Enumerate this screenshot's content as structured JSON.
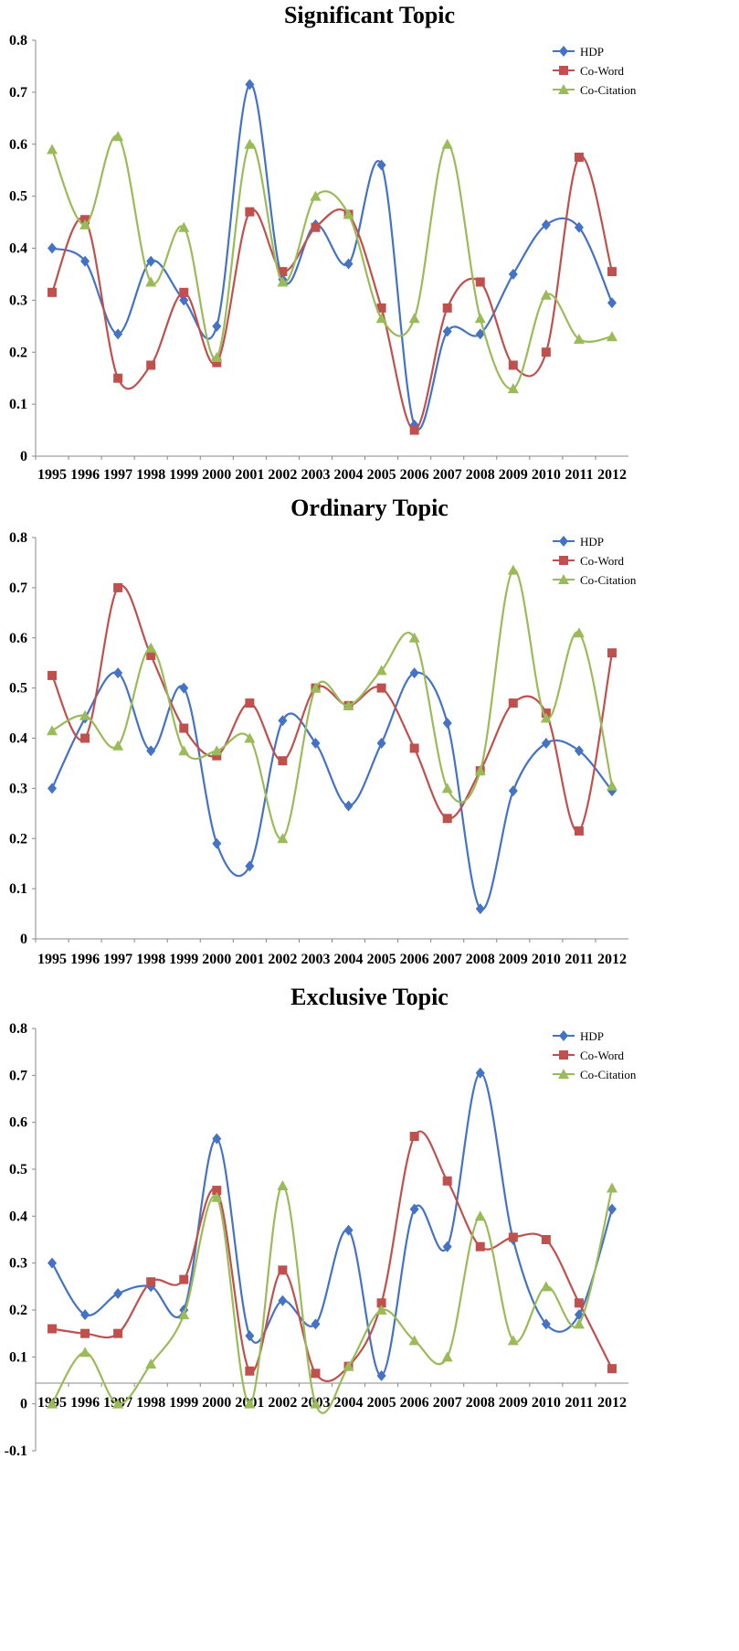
{
  "chart_data": [
    {
      "type": "line",
      "title": "Significant Topic",
      "x": [
        "1995",
        "1996",
        "1997",
        "1998",
        "1999",
        "2000",
        "2001",
        "2002",
        "2003",
        "2004",
        "2005",
        "2006",
        "2007",
        "2008",
        "2009",
        "2010",
        "2011",
        "2012"
      ],
      "ylim": [
        0,
        0.8
      ],
      "yticks": [
        "0",
        "0.1",
        "0.2",
        "0.3",
        "0.4",
        "0.5",
        "0.6",
        "0.7",
        "0.8"
      ],
      "grid": false,
      "legend_position": "top-right",
      "series": [
        {
          "name": "HDP",
          "color": "#4472c4",
          "marker": "diamond",
          "values": [
            0.4,
            0.375,
            0.235,
            0.375,
            0.3,
            0.25,
            0.715,
            0.34,
            0.445,
            0.37,
            0.56,
            0.06,
            0.24,
            0.235,
            0.35,
            0.445,
            0.44,
            0.295
          ]
        },
        {
          "name": "Co-Word",
          "color": "#c0504d",
          "marker": "square",
          "values": [
            0.315,
            0.455,
            0.15,
            0.175,
            0.315,
            0.18,
            0.47,
            0.355,
            0.44,
            0.465,
            0.285,
            0.05,
            0.285,
            0.335,
            0.175,
            0.2,
            0.575,
            0.355
          ]
        },
        {
          "name": "Co-Citation",
          "color": "#9bbb59",
          "marker": "triangle",
          "values": [
            0.59,
            0.445,
            0.615,
            0.335,
            0.44,
            0.19,
            0.6,
            0.335,
            0.5,
            0.465,
            0.265,
            0.265,
            0.6,
            0.265,
            0.13,
            0.31,
            0.225,
            0.23
          ]
        }
      ]
    },
    {
      "type": "line",
      "title": "Ordinary Topic",
      "x": [
        "1995",
        "1996",
        "1997",
        "1998",
        "1999",
        "2000",
        "2001",
        "2002",
        "2003",
        "2004",
        "2005",
        "2006",
        "2007",
        "2008",
        "2009",
        "2010",
        "2011",
        "2012"
      ],
      "ylim": [
        0,
        0.8
      ],
      "yticks": [
        "0",
        "0.1",
        "0.2",
        "0.3",
        "0.4",
        "0.5",
        "0.6",
        "0.7",
        "0.8"
      ],
      "grid": false,
      "legend_position": "top-right",
      "series": [
        {
          "name": "HDP",
          "color": "#4472c4",
          "marker": "diamond",
          "values": [
            0.3,
            0.44,
            0.53,
            0.375,
            0.5,
            0.19,
            0.145,
            0.435,
            0.39,
            0.265,
            0.39,
            0.53,
            0.43,
            0.06,
            0.295,
            0.39,
            0.375,
            0.295
          ]
        },
        {
          "name": "Co-Word",
          "color": "#c0504d",
          "marker": "square",
          "values": [
            0.525,
            0.4,
            0.7,
            0.565,
            0.42,
            0.365,
            0.47,
            0.355,
            0.5,
            0.465,
            0.5,
            0.38,
            0.24,
            0.335,
            0.47,
            0.45,
            0.215,
            0.57
          ]
        },
        {
          "name": "Co-Citation",
          "color": "#9bbb59",
          "marker": "triangle",
          "values": [
            0.415,
            0.445,
            0.385,
            0.58,
            0.375,
            0.375,
            0.4,
            0.2,
            0.5,
            0.465,
            0.535,
            0.6,
            0.3,
            0.335,
            0.735,
            0.44,
            0.61,
            0.305
          ]
        }
      ]
    },
    {
      "type": "line",
      "title": "Exclusive Topic",
      "x": [
        "1995",
        "1996",
        "1997",
        "1998",
        "1999",
        "2000",
        "2001",
        "2002",
        "2003",
        "2004",
        "2005",
        "2006",
        "2007",
        "2008",
        "2009",
        "2010",
        "2011",
        "2012"
      ],
      "ylim": [
        -0.1,
        0.8
      ],
      "yticks": [
        "-0.1",
        "0",
        "0.1",
        "0.2",
        "0.3",
        "0.4",
        "0.5",
        "0.6",
        "0.7",
        "0.8"
      ],
      "grid": false,
      "legend_position": "top-right",
      "series": [
        {
          "name": "HDP",
          "color": "#4472c4",
          "marker": "diamond",
          "values": [
            0.3,
            0.19,
            0.235,
            0.25,
            0.2,
            0.565,
            0.145,
            0.22,
            0.17,
            0.37,
            0.06,
            0.415,
            0.335,
            0.705,
            0.35,
            0.17,
            0.19,
            0.415
          ]
        },
        {
          "name": "Co-Word",
          "color": "#c0504d",
          "marker": "square",
          "values": [
            0.16,
            0.15,
            0.15,
            0.26,
            0.265,
            0.455,
            0.07,
            0.285,
            0.065,
            0.08,
            0.215,
            0.57,
            0.475,
            0.335,
            0.355,
            0.35,
            0.215,
            0.075
          ]
        },
        {
          "name": "Co-Citation",
          "color": "#9bbb59",
          "marker": "triangle",
          "values": [
            0.0,
            0.11,
            0.0,
            0.085,
            0.19,
            0.44,
            0.0,
            0.465,
            0.0,
            0.08,
            0.2,
            0.135,
            0.1,
            0.4,
            0.135,
            0.25,
            0.17,
            0.46
          ]
        }
      ]
    }
  ]
}
